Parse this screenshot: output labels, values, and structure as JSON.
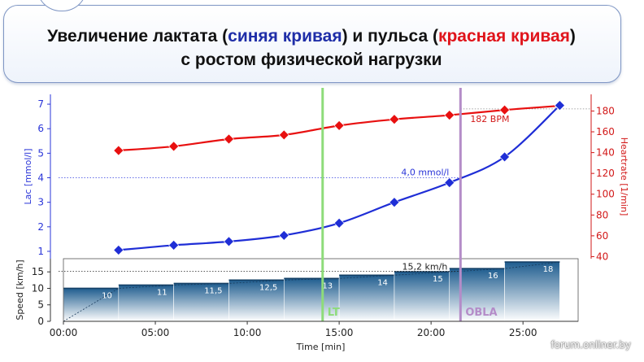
{
  "title": {
    "part1": "Увеличение лактата (",
    "blue": "синяя кривая",
    "part2": ") и пульса (",
    "red": "красная кривая",
    "part3": ")",
    "line2": "с ростом физической нагрузки"
  },
  "watermark": "forum.onliner.by",
  "colors": {
    "lactate": "#1f2ed6",
    "heartrate": "#e81010",
    "lt_line": "#8edc7a",
    "obla_line": "#b48cc8",
    "speed_fill": "#2f6f9f"
  },
  "chart_data": {
    "type": "line",
    "xlabel": "Time [min]",
    "x_ticks": [
      "00:00",
      "05:00",
      "10:00",
      "15:00",
      "20:00",
      "25:00"
    ],
    "xlim": [
      0,
      28
    ],
    "lactate": {
      "ylabel": "Lac [mmol/l]",
      "ylim": [
        0.7,
        7.4
      ],
      "y_ticks": [
        "1",
        "2",
        "3",
        "4",
        "5",
        "6",
        "7"
      ],
      "points": [
        [
          3,
          1.05
        ],
        [
          6,
          1.25
        ],
        [
          9,
          1.4
        ],
        [
          12,
          1.65
        ],
        [
          15,
          2.15
        ],
        [
          18,
          3.0
        ],
        [
          21,
          3.8
        ],
        [
          24,
          4.85
        ],
        [
          27,
          6.95
        ]
      ]
    },
    "heartrate": {
      "ylabel": "Heartrate [1/min]",
      "ylim": [
        38,
        196
      ],
      "y_ticks": [
        "40",
        "60",
        "80",
        "100",
        "120",
        "140",
        "160",
        "180"
      ],
      "points": [
        [
          3,
          142
        ],
        [
          6,
          146
        ],
        [
          9,
          153
        ],
        [
          12,
          157
        ],
        [
          15,
          166
        ],
        [
          18,
          172
        ],
        [
          21,
          176
        ],
        [
          24,
          181
        ],
        [
          27,
          185
        ]
      ]
    },
    "speed": {
      "ylabel": "Speed [km/h]",
      "ylim": [
        0,
        19
      ],
      "y_ticks": [
        "0",
        "5",
        "10",
        "15"
      ],
      "steps": [
        {
          "start": 0,
          "end": 3,
          "value": 10,
          "label": "10"
        },
        {
          "start": 3,
          "end": 6,
          "value": 11,
          "label": "11"
        },
        {
          "start": 6,
          "end": 9,
          "value": 11.5,
          "label": "11,5"
        },
        {
          "start": 9,
          "end": 12,
          "value": 12.5,
          "label": "12,5"
        },
        {
          "start": 12,
          "end": 15,
          "value": 13,
          "label": "13"
        },
        {
          "start": 15,
          "end": 18,
          "value": 14,
          "label": "14"
        },
        {
          "start": 18,
          "end": 21,
          "value": 15,
          "label": "15"
        },
        {
          "start": 21,
          "end": 24,
          "value": 16,
          "label": "16"
        },
        {
          "start": 24,
          "end": 27,
          "value": 18,
          "label": "18"
        }
      ]
    },
    "markers": [
      {
        "name": "LT",
        "x": 14.1
      },
      {
        "name": "OBLA",
        "x": 21.6
      }
    ],
    "annotations": {
      "lactate_threshold": "4,0 mmol/l",
      "lactate_threshold_value": 4.0,
      "heartrate_value": "182 BPM",
      "heartrate_threshold_value": 182,
      "speed_value": "15,2 km/h",
      "speed_threshold_value": 15.2
    }
  }
}
